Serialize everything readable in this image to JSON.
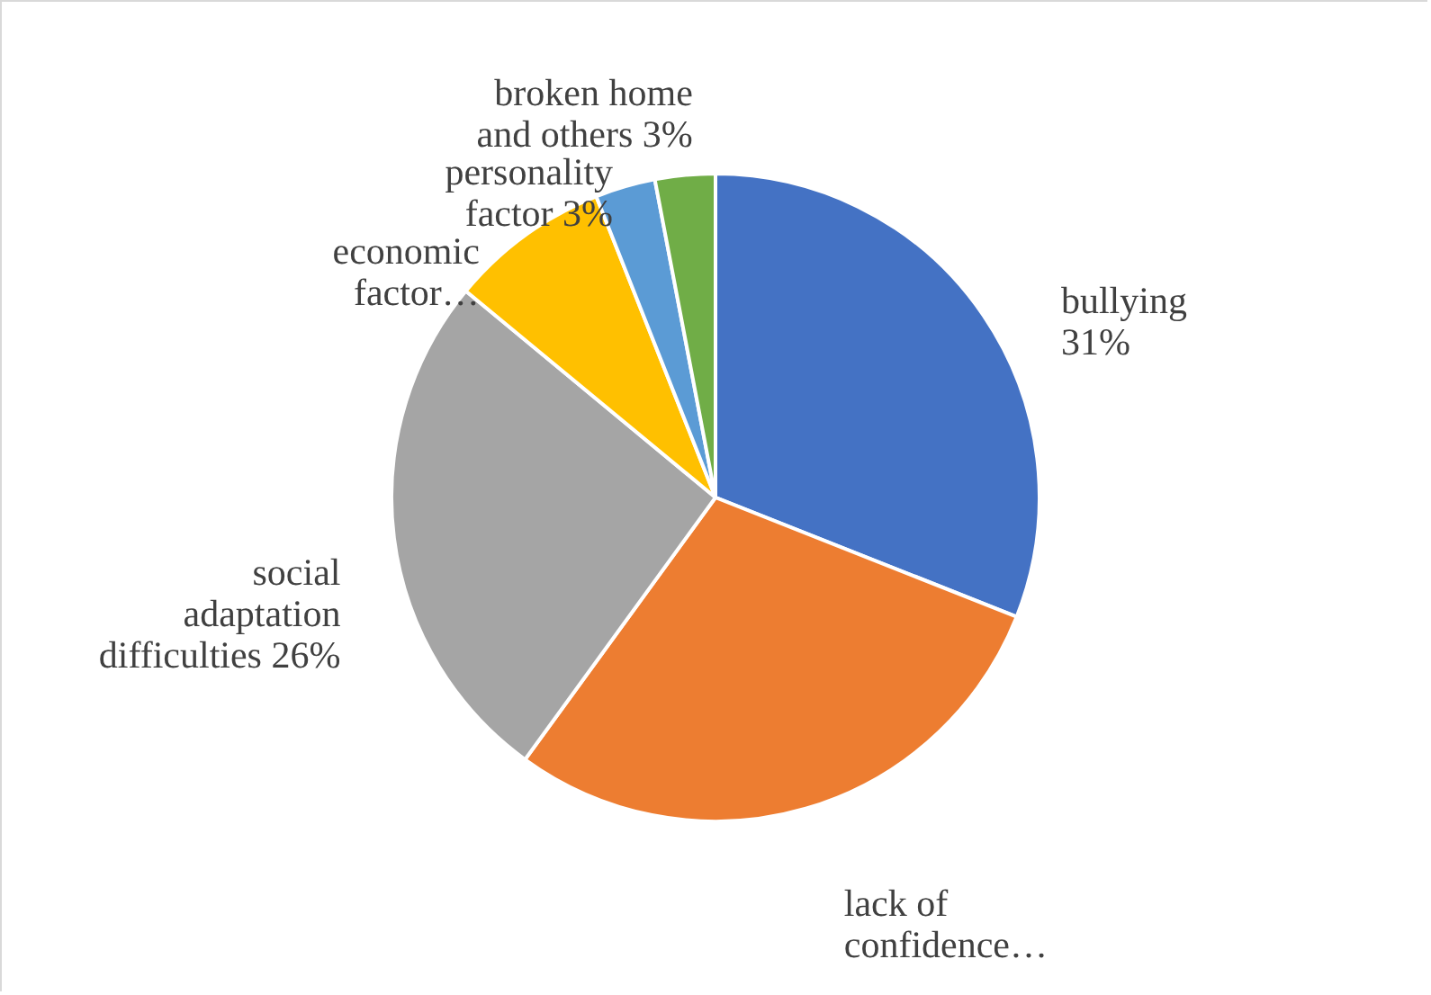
{
  "chart_data": {
    "type": "pie",
    "categories": [
      "bullying",
      "lack of confidence…",
      "social adaptation difficulties",
      "economic factor…",
      "personality factor",
      "broken home and others"
    ],
    "values": [
      31,
      29,
      26,
      8,
      3,
      3
    ],
    "value_labels": [
      "31%",
      null,
      "26%",
      null,
      "3%",
      "3%"
    ],
    "colors": [
      "#4472c4",
      "#ed7d31",
      "#a5a5a5",
      "#ffc000",
      "#5b9bd5",
      "#70ad47"
    ]
  }
}
